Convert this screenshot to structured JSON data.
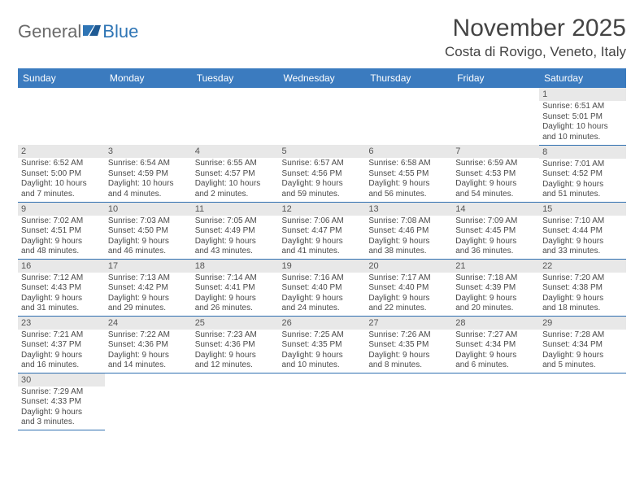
{
  "logo": {
    "text1": "General",
    "text2": "Blue"
  },
  "title": "November 2025",
  "location": "Costa di Rovigo, Veneto, Italy",
  "colors": {
    "header_bg": "#3b7bbf",
    "header_text": "#ffffff",
    "daynum_bg": "#e8e8e8",
    "rule": "#2f6fb0",
    "logo_blue": "#2f75b5",
    "logo_gray": "#6a6a6a"
  },
  "day_headers": [
    "Sunday",
    "Monday",
    "Tuesday",
    "Wednesday",
    "Thursday",
    "Friday",
    "Saturday"
  ],
  "weeks": [
    [
      null,
      null,
      null,
      null,
      null,
      null,
      {
        "n": "1",
        "sr": "Sunrise: 6:51 AM",
        "ss": "Sunset: 5:01 PM",
        "d1": "Daylight: 10 hours",
        "d2": "and 10 minutes."
      }
    ],
    [
      {
        "n": "2",
        "sr": "Sunrise: 6:52 AM",
        "ss": "Sunset: 5:00 PM",
        "d1": "Daylight: 10 hours",
        "d2": "and 7 minutes."
      },
      {
        "n": "3",
        "sr": "Sunrise: 6:54 AM",
        "ss": "Sunset: 4:59 PM",
        "d1": "Daylight: 10 hours",
        "d2": "and 4 minutes."
      },
      {
        "n": "4",
        "sr": "Sunrise: 6:55 AM",
        "ss": "Sunset: 4:57 PM",
        "d1": "Daylight: 10 hours",
        "d2": "and 2 minutes."
      },
      {
        "n": "5",
        "sr": "Sunrise: 6:57 AM",
        "ss": "Sunset: 4:56 PM",
        "d1": "Daylight: 9 hours",
        "d2": "and 59 minutes."
      },
      {
        "n": "6",
        "sr": "Sunrise: 6:58 AM",
        "ss": "Sunset: 4:55 PM",
        "d1": "Daylight: 9 hours",
        "d2": "and 56 minutes."
      },
      {
        "n": "7",
        "sr": "Sunrise: 6:59 AM",
        "ss": "Sunset: 4:53 PM",
        "d1": "Daylight: 9 hours",
        "d2": "and 54 minutes."
      },
      {
        "n": "8",
        "sr": "Sunrise: 7:01 AM",
        "ss": "Sunset: 4:52 PM",
        "d1": "Daylight: 9 hours",
        "d2": "and 51 minutes."
      }
    ],
    [
      {
        "n": "9",
        "sr": "Sunrise: 7:02 AM",
        "ss": "Sunset: 4:51 PM",
        "d1": "Daylight: 9 hours",
        "d2": "and 48 minutes."
      },
      {
        "n": "10",
        "sr": "Sunrise: 7:03 AM",
        "ss": "Sunset: 4:50 PM",
        "d1": "Daylight: 9 hours",
        "d2": "and 46 minutes."
      },
      {
        "n": "11",
        "sr": "Sunrise: 7:05 AM",
        "ss": "Sunset: 4:49 PM",
        "d1": "Daylight: 9 hours",
        "d2": "and 43 minutes."
      },
      {
        "n": "12",
        "sr": "Sunrise: 7:06 AM",
        "ss": "Sunset: 4:47 PM",
        "d1": "Daylight: 9 hours",
        "d2": "and 41 minutes."
      },
      {
        "n": "13",
        "sr": "Sunrise: 7:08 AM",
        "ss": "Sunset: 4:46 PM",
        "d1": "Daylight: 9 hours",
        "d2": "and 38 minutes."
      },
      {
        "n": "14",
        "sr": "Sunrise: 7:09 AM",
        "ss": "Sunset: 4:45 PM",
        "d1": "Daylight: 9 hours",
        "d2": "and 36 minutes."
      },
      {
        "n": "15",
        "sr": "Sunrise: 7:10 AM",
        "ss": "Sunset: 4:44 PM",
        "d1": "Daylight: 9 hours",
        "d2": "and 33 minutes."
      }
    ],
    [
      {
        "n": "16",
        "sr": "Sunrise: 7:12 AM",
        "ss": "Sunset: 4:43 PM",
        "d1": "Daylight: 9 hours",
        "d2": "and 31 minutes."
      },
      {
        "n": "17",
        "sr": "Sunrise: 7:13 AM",
        "ss": "Sunset: 4:42 PM",
        "d1": "Daylight: 9 hours",
        "d2": "and 29 minutes."
      },
      {
        "n": "18",
        "sr": "Sunrise: 7:14 AM",
        "ss": "Sunset: 4:41 PM",
        "d1": "Daylight: 9 hours",
        "d2": "and 26 minutes."
      },
      {
        "n": "19",
        "sr": "Sunrise: 7:16 AM",
        "ss": "Sunset: 4:40 PM",
        "d1": "Daylight: 9 hours",
        "d2": "and 24 minutes."
      },
      {
        "n": "20",
        "sr": "Sunrise: 7:17 AM",
        "ss": "Sunset: 4:40 PM",
        "d1": "Daylight: 9 hours",
        "d2": "and 22 minutes."
      },
      {
        "n": "21",
        "sr": "Sunrise: 7:18 AM",
        "ss": "Sunset: 4:39 PM",
        "d1": "Daylight: 9 hours",
        "d2": "and 20 minutes."
      },
      {
        "n": "22",
        "sr": "Sunrise: 7:20 AM",
        "ss": "Sunset: 4:38 PM",
        "d1": "Daylight: 9 hours",
        "d2": "and 18 minutes."
      }
    ],
    [
      {
        "n": "23",
        "sr": "Sunrise: 7:21 AM",
        "ss": "Sunset: 4:37 PM",
        "d1": "Daylight: 9 hours",
        "d2": "and 16 minutes."
      },
      {
        "n": "24",
        "sr": "Sunrise: 7:22 AM",
        "ss": "Sunset: 4:36 PM",
        "d1": "Daylight: 9 hours",
        "d2": "and 14 minutes."
      },
      {
        "n": "25",
        "sr": "Sunrise: 7:23 AM",
        "ss": "Sunset: 4:36 PM",
        "d1": "Daylight: 9 hours",
        "d2": "and 12 minutes."
      },
      {
        "n": "26",
        "sr": "Sunrise: 7:25 AM",
        "ss": "Sunset: 4:35 PM",
        "d1": "Daylight: 9 hours",
        "d2": "and 10 minutes."
      },
      {
        "n": "27",
        "sr": "Sunrise: 7:26 AM",
        "ss": "Sunset: 4:35 PM",
        "d1": "Daylight: 9 hours",
        "d2": "and 8 minutes."
      },
      {
        "n": "28",
        "sr": "Sunrise: 7:27 AM",
        "ss": "Sunset: 4:34 PM",
        "d1": "Daylight: 9 hours",
        "d2": "and 6 minutes."
      },
      {
        "n": "29",
        "sr": "Sunrise: 7:28 AM",
        "ss": "Sunset: 4:34 PM",
        "d1": "Daylight: 9 hours",
        "d2": "and 5 minutes."
      }
    ],
    [
      {
        "n": "30",
        "sr": "Sunrise: 7:29 AM",
        "ss": "Sunset: 4:33 PM",
        "d1": "Daylight: 9 hours",
        "d2": "and 3 minutes."
      },
      null,
      null,
      null,
      null,
      null,
      null
    ]
  ]
}
